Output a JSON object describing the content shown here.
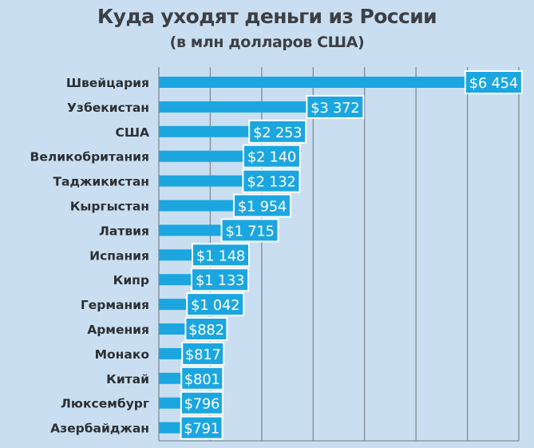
{
  "chart_data": {
    "type": "bar",
    "orientation": "horizontal",
    "title": "Куда уходят деньги из России",
    "subtitle": "(в млн долларов США)",
    "categories": [
      "Швейцария",
      "Узбекистан",
      "США",
      "Великобритания",
      "Таджикистан",
      "Кыргыстан",
      "Латвия",
      "Испания",
      "Кипр",
      "Германия",
      "Армения",
      "Монако",
      "Китай",
      "Люксембург",
      "Азербайджан"
    ],
    "values": [
      6454,
      3372,
      2253,
      2140,
      2132,
      1954,
      1715,
      1148,
      1133,
      1042,
      882,
      817,
      801,
      796,
      791
    ],
    "data_labels": [
      "$6 454",
      "$3 372",
      "$2 253",
      "$2 140",
      "$2 132",
      "$1 954",
      "$1 715",
      "$1 148",
      "$1 133",
      "$1 042",
      "$882",
      "$817",
      "$801",
      "$796",
      "$791"
    ],
    "xlim": [
      0,
      7000
    ],
    "grid": true,
    "colors": {
      "bar": "#1ba6e0",
      "label_box": "#1ba6e0",
      "label_border": "#ffffff",
      "background": "#c9dff1",
      "grid": "#7f8a95",
      "text": "#2c2f33"
    }
  }
}
